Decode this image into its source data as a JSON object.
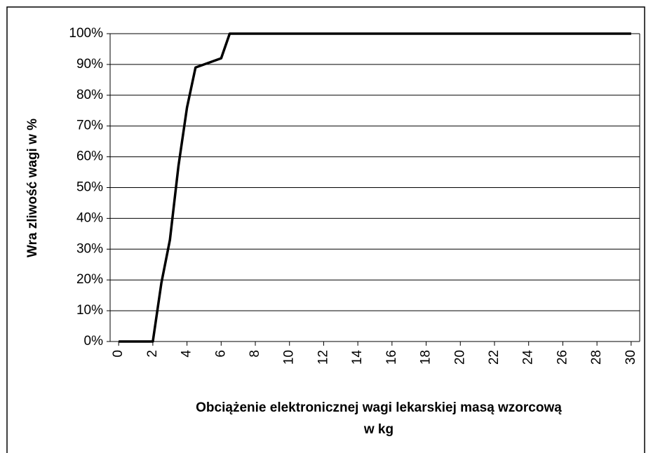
{
  "chart_data": {
    "type": "line",
    "x": [
      0,
      2,
      2.5,
      3,
      3.5,
      4,
      4.5,
      5,
      5.5,
      6,
      6.5,
      30
    ],
    "series": [
      {
        "name": "Wrażliwość",
        "color": "#000000",
        "values": [
          0,
          0,
          19,
          33,
          57,
          76,
          89,
          90,
          91,
          92,
          100,
          100
        ]
      }
    ],
    "xlim": [
      -0.5,
      30.5
    ],
    "xticks": [
      0,
      2,
      4,
      6,
      8,
      10,
      12,
      14,
      16,
      18,
      20,
      22,
      24,
      26,
      28,
      30
    ],
    "ylim": [
      0,
      100
    ],
    "yticks": [
      {
        "value": 0,
        "label": "0%"
      },
      {
        "value": 10,
        "label": "10%"
      },
      {
        "value": 20,
        "label": "20%"
      },
      {
        "value": 30,
        "label": "30%"
      },
      {
        "value": 40,
        "label": "40%"
      },
      {
        "value": 50,
        "label": "50%"
      },
      {
        "value": 60,
        "label": "60%"
      },
      {
        "value": 70,
        "label": "70%"
      },
      {
        "value": 80,
        "label": "80%"
      },
      {
        "value": 90,
        "label": "90%"
      },
      {
        "value": 100,
        "label": "100%"
      }
    ],
    "grid": true,
    "xlabel": [
      "Obciążenie elektronicznej wagi lekarskiej masą wzorcową",
      "w kg"
    ],
    "ylabel": "Wra zliwość wagi w %"
  }
}
